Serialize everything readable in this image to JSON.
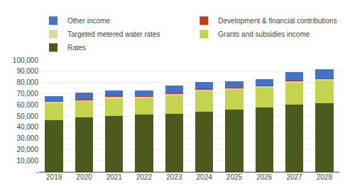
{
  "chart_data": {
    "type": "bar",
    "stacked": true,
    "categories": [
      "2019",
      "2020",
      "2021",
      "2022",
      "2023",
      "2024",
      "2025",
      "2026",
      "2027",
      "2028"
    ],
    "series": [
      {
        "name": "Rates",
        "color": "#4d5a1e",
        "values": [
          46500,
          48500,
          50000,
          51000,
          52000,
          54000,
          55500,
          57500,
          60000,
          61500
        ]
      },
      {
        "name": "Grants and subsidies income",
        "color": "#c4d44e",
        "values": [
          15000,
          14500,
          15500,
          15000,
          16500,
          18000,
          18000,
          18000,
          20000,
          20000
        ]
      },
      {
        "name": "Targeted metered water rates",
        "color": "#ddd9a3",
        "values": [
          1500,
          1500,
          1500,
          1500,
          1500,
          1500,
          1500,
          1500,
          1500,
          1500
        ]
      },
      {
        "name": "Development & financial contributions",
        "color": "#c0391b",
        "values": [
          500,
          1000,
          1500,
          500,
          500,
          1000,
          500,
          500,
          500,
          500
        ]
      },
      {
        "name": "Other income",
        "color": "#4472c4",
        "values": [
          4500,
          5500,
          4500,
          5000,
          6500,
          6000,
          5500,
          5500,
          7000,
          8000
        ]
      }
    ],
    "ylim": [
      0,
      100000
    ],
    "yticks": [
      {
        "value": 0,
        "label": "-"
      },
      {
        "value": 10000,
        "label": "10,000"
      },
      {
        "value": 20000,
        "label": "20,000"
      },
      {
        "value": 30000,
        "label": "30,000"
      },
      {
        "value": 40000,
        "label": "40,000"
      },
      {
        "value": 50000,
        "label": "50,000"
      },
      {
        "value": 60000,
        "label": "60,000"
      },
      {
        "value": 70000,
        "label": "70,000"
      },
      {
        "value": 80000,
        "label": "80,000"
      },
      {
        "value": 90000,
        "label": "90,000"
      },
      {
        "value": 100000,
        "label": "100,000"
      }
    ],
    "grid": true,
    "legend": "top"
  }
}
